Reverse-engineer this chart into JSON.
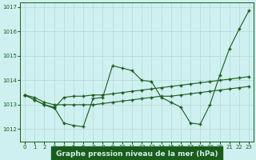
{
  "line1_y": [
    1013.4,
    1013.2,
    1013.0,
    1012.9,
    1012.25,
    1012.15,
    1012.1,
    1013.25,
    1013.3,
    1014.6,
    1014.5,
    1014.4,
    1014.0,
    1013.95,
    1013.3,
    1013.1,
    1012.9,
    1012.25,
    1012.2,
    1013.0,
    1014.2,
    1015.3,
    1016.1,
    1016.85
  ],
  "line2_y": [
    1013.4,
    1013.3,
    1013.1,
    1013.0,
    1013.0,
    1013.0,
    1013.0,
    1013.0,
    1013.05,
    1013.1,
    1013.15,
    1013.2,
    1013.25,
    1013.3,
    1013.35,
    1013.35,
    1013.4,
    1013.45,
    1013.5,
    1013.55,
    1013.6,
    1013.65,
    1013.7,
    1013.75
  ],
  "line3_y": [
    1013.4,
    1013.2,
    1013.0,
    1012.85,
    1013.3,
    1013.35,
    1013.35,
    1013.4,
    1013.4,
    1013.45,
    1013.5,
    1013.55,
    1013.6,
    1013.65,
    1013.7,
    1013.75,
    1013.8,
    1013.85,
    1013.9,
    1013.95,
    1014.0,
    1014.05,
    1014.1,
    1014.15
  ],
  "x": [
    0,
    1,
    2,
    3,
    4,
    5,
    6,
    7,
    8,
    9,
    10,
    11,
    12,
    13,
    14,
    15,
    16,
    17,
    18,
    19,
    20,
    21,
    22,
    23
  ],
  "xlim": [
    -0.5,
    23.5
  ],
  "ylim": [
    1011.5,
    1017.2
  ],
  "yticks": [
    1012,
    1013,
    1014,
    1015,
    1016,
    1017
  ],
  "xticks": [
    0,
    1,
    2,
    3,
    4,
    5,
    6,
    7,
    8,
    9,
    10,
    11,
    12,
    13,
    14,
    15,
    16,
    17,
    18,
    19,
    20,
    21,
    22,
    23
  ],
  "line_color": "#1a5c1a",
  "marker": "+",
  "markersize": 3.5,
  "bg_color": "#cff0f0",
  "grid_color": "#b0d8d8",
  "xlabel": "Graphe pression niveau de la mer (hPa)",
  "tick_fontsize": 5.0,
  "label_fontsize": 6.5,
  "xlabel_bg": "#1a5c1a",
  "xlabel_fg": "#cff0f0"
}
